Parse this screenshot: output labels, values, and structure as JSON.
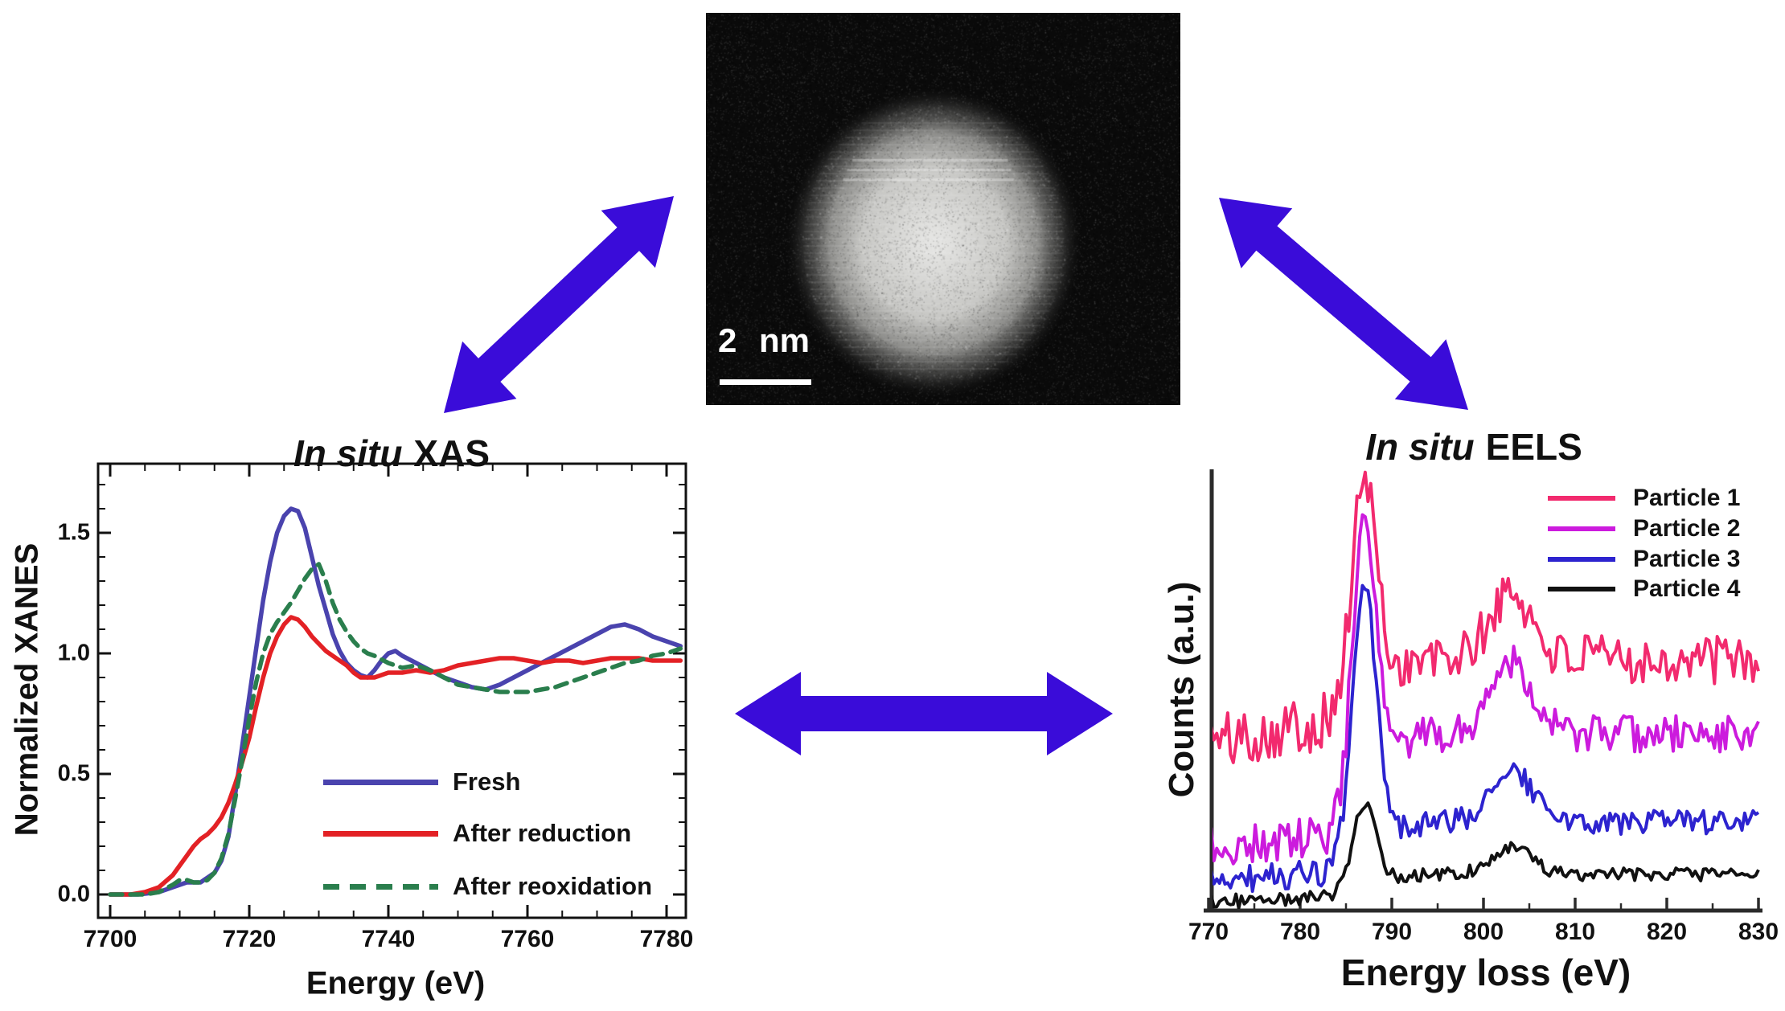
{
  "figure": {
    "arrow_color": "#3a0cd9",
    "background": "#ffffff"
  },
  "stem_image": {
    "scale_bar_label": "2 nm"
  },
  "chart_data": [
    {
      "type": "line",
      "title": "In situ XAS",
      "title_italic": "In situ",
      "title_rest": "XAS",
      "xlabel": "Energy (eV)",
      "ylabel": "Normalized XANES",
      "xlim": [
        7698,
        7783
      ],
      "ylim": [
        -0.1,
        1.78
      ],
      "x_ticks": [
        "7700",
        "7720",
        "7740",
        "7760",
        "7780"
      ],
      "y_ticks": [
        "0.0",
        "0.5",
        "1.0",
        "1.5"
      ],
      "grid": false,
      "legend_position": "inside lower right",
      "series": [
        {
          "name": "Fresh",
          "color": "#4a43ae",
          "style": "solid",
          "points": [
            [
              7700,
              0
            ],
            [
              7704,
              0
            ],
            [
              7707,
              0.01
            ],
            [
              7709,
              0.03
            ],
            [
              7711,
              0.05
            ],
            [
              7713,
              0.05
            ],
            [
              7715,
              0.09
            ],
            [
              7716,
              0.14
            ],
            [
              7717,
              0.24
            ],
            [
              7718,
              0.42
            ],
            [
              7719,
              0.62
            ],
            [
              7720,
              0.82
            ],
            [
              7721,
              1.02
            ],
            [
              7722,
              1.22
            ],
            [
              7723,
              1.38
            ],
            [
              7724,
              1.5
            ],
            [
              7725,
              1.57
            ],
            [
              7726,
              1.6
            ],
            [
              7727,
              1.59
            ],
            [
              7728,
              1.52
            ],
            [
              7729,
              1.4
            ],
            [
              7730,
              1.28
            ],
            [
              7731,
              1.18
            ],
            [
              7732,
              1.08
            ],
            [
              7733,
              1.01
            ],
            [
              7734,
              0.96
            ],
            [
              7735,
              0.93
            ],
            [
              7736,
              0.91
            ],
            [
              7737,
              0.9
            ],
            [
              7738,
              0.93
            ],
            [
              7739,
              0.97
            ],
            [
              7740,
              1.0
            ],
            [
              7741,
              1.01
            ],
            [
              7742,
              0.99
            ],
            [
              7744,
              0.96
            ],
            [
              7746,
              0.93
            ],
            [
              7748,
              0.9
            ],
            [
              7750,
              0.88
            ],
            [
              7752,
              0.86
            ],
            [
              7754,
              0.85
            ],
            [
              7756,
              0.87
            ],
            [
              7758,
              0.9
            ],
            [
              7760,
              0.93
            ],
            [
              7762,
              0.96
            ],
            [
              7764,
              0.99
            ],
            [
              7766,
              1.02
            ],
            [
              7768,
              1.05
            ],
            [
              7770,
              1.08
            ],
            [
              7772,
              1.11
            ],
            [
              7774,
              1.12
            ],
            [
              7776,
              1.1
            ],
            [
              7778,
              1.07
            ],
            [
              7780,
              1.05
            ],
            [
              7782,
              1.03
            ]
          ]
        },
        {
          "name": "After reduction",
          "color": "#e32125",
          "style": "solid",
          "points": [
            [
              7700,
              0
            ],
            [
              7703,
              0
            ],
            [
              7705,
              0.01
            ],
            [
              7707,
              0.03
            ],
            [
              7709,
              0.08
            ],
            [
              7710,
              0.12
            ],
            [
              7711,
              0.16
            ],
            [
              7712,
              0.2
            ],
            [
              7713,
              0.23
            ],
            [
              7714,
              0.25
            ],
            [
              7715,
              0.28
            ],
            [
              7716,
              0.32
            ],
            [
              7717,
              0.38
            ],
            [
              7718,
              0.46
            ],
            [
              7719,
              0.55
            ],
            [
              7720,
              0.65
            ],
            [
              7721,
              0.78
            ],
            [
              7722,
              0.9
            ],
            [
              7723,
              1.0
            ],
            [
              7724,
              1.07
            ],
            [
              7725,
              1.12
            ],
            [
              7726,
              1.15
            ],
            [
              7727,
              1.14
            ],
            [
              7728,
              1.11
            ],
            [
              7729,
              1.07
            ],
            [
              7730,
              1.04
            ],
            [
              7731,
              1.01
            ],
            [
              7732,
              0.99
            ],
            [
              7733,
              0.97
            ],
            [
              7734,
              0.95
            ],
            [
              7735,
              0.92
            ],
            [
              7736,
              0.9
            ],
            [
              7737,
              0.9
            ],
            [
              7738,
              0.9
            ],
            [
              7740,
              0.92
            ],
            [
              7742,
              0.92
            ],
            [
              7744,
              0.93
            ],
            [
              7746,
              0.92
            ],
            [
              7748,
              0.93
            ],
            [
              7750,
              0.95
            ],
            [
              7752,
              0.96
            ],
            [
              7754,
              0.97
            ],
            [
              7756,
              0.98
            ],
            [
              7758,
              0.98
            ],
            [
              7760,
              0.97
            ],
            [
              7762,
              0.96
            ],
            [
              7764,
              0.97
            ],
            [
              7766,
              0.97
            ],
            [
              7768,
              0.96
            ],
            [
              7770,
              0.97
            ],
            [
              7772,
              0.98
            ],
            [
              7774,
              0.98
            ],
            [
              7776,
              0.98
            ],
            [
              7778,
              0.97
            ],
            [
              7780,
              0.97
            ],
            [
              7782,
              0.97
            ]
          ]
        },
        {
          "name": "After reoxidation",
          "color": "#2a7e4d",
          "style": "dashed",
          "points": [
            [
              7700,
              0
            ],
            [
              7705,
              0
            ],
            [
              7707,
              0.01
            ],
            [
              7709,
              0.04
            ],
            [
              7710,
              0.06
            ],
            [
              7711,
              0.06
            ],
            [
              7712,
              0.05
            ],
            [
              7713,
              0.05
            ],
            [
              7714,
              0.06
            ],
            [
              7715,
              0.09
            ],
            [
              7716,
              0.15
            ],
            [
              7717,
              0.25
            ],
            [
              7718,
              0.4
            ],
            [
              7719,
              0.56
            ],
            [
              7720,
              0.73
            ],
            [
              7721,
              0.88
            ],
            [
              7722,
              1.0
            ],
            [
              7723,
              1.08
            ],
            [
              7724,
              1.13
            ],
            [
              7725,
              1.17
            ],
            [
              7726,
              1.21
            ],
            [
              7727,
              1.26
            ],
            [
              7728,
              1.31
            ],
            [
              7729,
              1.35
            ],
            [
              7730,
              1.37
            ],
            [
              7731,
              1.3
            ],
            [
              7732,
              1.21
            ],
            [
              7733,
              1.14
            ],
            [
              7734,
              1.09
            ],
            [
              7735,
              1.05
            ],
            [
              7736,
              1.02
            ],
            [
              7737,
              1.0
            ],
            [
              7738,
              0.99
            ],
            [
              7740,
              0.96
            ],
            [
              7742,
              0.94
            ],
            [
              7744,
              0.95
            ],
            [
              7746,
              0.93
            ],
            [
              7748,
              0.9
            ],
            [
              7750,
              0.87
            ],
            [
              7752,
              0.86
            ],
            [
              7754,
              0.85
            ],
            [
              7756,
              0.84
            ],
            [
              7758,
              0.84
            ],
            [
              7760,
              0.84
            ],
            [
              7762,
              0.85
            ],
            [
              7764,
              0.86
            ],
            [
              7766,
              0.88
            ],
            [
              7768,
              0.9
            ],
            [
              7770,
              0.92
            ],
            [
              7772,
              0.94
            ],
            [
              7774,
              0.96
            ],
            [
              7776,
              0.97
            ],
            [
              7778,
              0.99
            ],
            [
              7780,
              1.0
            ],
            [
              7782,
              1.02
            ]
          ]
        }
      ]
    },
    {
      "type": "line",
      "title": "In situ EELS",
      "title_italic": "In situ",
      "title_rest": "EELS",
      "xlabel": "Energy loss (eV)",
      "ylabel": "Counts (a.u.)",
      "xlim": [
        770,
        830
      ],
      "x_ticks": [
        "770",
        "780",
        "790",
        "800",
        "810",
        "820",
        "830"
      ],
      "y_ticks": [],
      "grid": false,
      "legend_position": "inside upper right",
      "l3_edge_eV": 787,
      "l2_edge_eV": 803,
      "series": [
        {
          "name": "Particle 1",
          "color": "#f22a6e",
          "style": "solid",
          "envelope": {
            "pre": 0.38,
            "drift": 0.004,
            "post": 0.57,
            "l3": 0.52,
            "l2": 0.15,
            "noise": 0.065,
            "seed": 101
          }
        },
        {
          "name": "Particle 2",
          "color": "#cc1bdd",
          "style": "solid",
          "envelope": {
            "pre": 0.14,
            "drift": 0.002,
            "post": 0.4,
            "l3": 0.66,
            "l2": 0.17,
            "noise": 0.05,
            "seed": 202
          }
        },
        {
          "name": "Particle 3",
          "color": "#2d23cf",
          "style": "solid",
          "envelope": {
            "pre": 0.07,
            "drift": 0.001,
            "post": 0.2,
            "l3": 0.62,
            "l2": 0.12,
            "noise": 0.032,
            "seed": 303
          }
        },
        {
          "name": "Particle 4",
          "color": "#111111",
          "style": "solid",
          "envelope": {
            "pre": 0.02,
            "drift": 0.0006,
            "post": 0.082,
            "l3": 0.2,
            "l2": 0.06,
            "noise": 0.017,
            "seed": 404
          }
        }
      ]
    }
  ]
}
